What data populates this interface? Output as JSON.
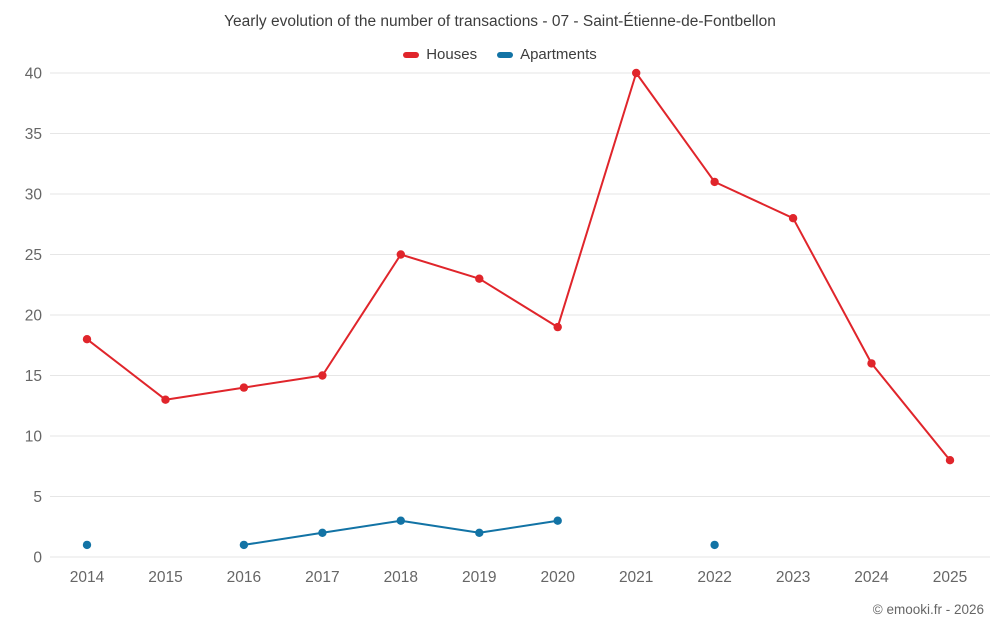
{
  "chart_data": {
    "type": "line",
    "title": "Yearly evolution of the number of transactions - 07 - Saint-Étienne-de-Fontbellon",
    "categories": [
      "2014",
      "2015",
      "2016",
      "2017",
      "2018",
      "2019",
      "2020",
      "2021",
      "2022",
      "2023",
      "2024",
      "2025"
    ],
    "series": [
      {
        "name": "Houses",
        "color": "#e0252b",
        "values": [
          18,
          13,
          14,
          15,
          25,
          23,
          19,
          40,
          31,
          28,
          16,
          8
        ]
      },
      {
        "name": "Apartments",
        "color": "#1273a5",
        "values": [
          1,
          null,
          1,
          2,
          3,
          2,
          3,
          null,
          1,
          null,
          null,
          null
        ]
      }
    ],
    "xlabel": "",
    "ylabel": "",
    "ylim": [
      0,
      40
    ],
    "ytick_step": 5,
    "grid": true,
    "grid_color": "#e6e6e6",
    "axis_label_color": "#666666",
    "legend_position": "top"
  },
  "footer": {
    "copyright": "© emooki.fr - 2026"
  }
}
